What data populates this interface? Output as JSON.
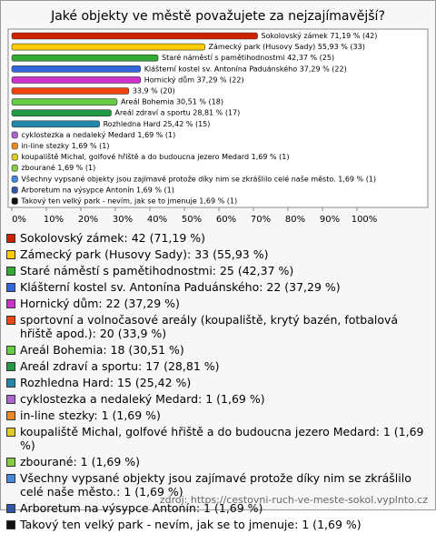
{
  "chart_data": {
    "type": "bar",
    "orientation": "horizontal",
    "title": "Jaké objekty ve městě považujete za nejzajímavější?",
    "categories": [
      "Sokolovský zámek",
      "Zámecký park (Husovy Sady)",
      "Staré náměstí s pamětihodnostmi",
      "Klášterní kostel sv. Antonína Paduánského",
      "Hornický dům",
      "sportovní a volnočasové areály (koupaliště, krytý bazén, fotbalová hřiště apod.)",
      "Areál Bohemia",
      "Areál zdraví a sportu",
      "Rozhledna Hard",
      "cyklostezka a nedaleký Medard",
      "in-line stezky",
      "koupaliště Michal, golfové hřiště a do budoucna jezero Medard",
      "zbourané",
      "Všechny vypsané objekty jsou zajímavé protože díky nim se zkrášlilo celé naše město.",
      "Arboretum na výsypce Antonín",
      "Takový ten velký park - nevím, jak se to jmenuje"
    ],
    "values": [
      71.19,
      55.93,
      42.37,
      37.29,
      37.29,
      33.9,
      30.51,
      28.81,
      25.42,
      1.69,
      1.69,
      1.69,
      1.69,
      1.69,
      1.69,
      1.69
    ],
    "value_labels": [
      "Sokolovský zámek 71,19 % (42)",
      "Zámecký park (Husovy Sady) 55,93 % (33)",
      "Staré náměstí s pamětihodnostmi 42,37 % (25)",
      "Klášterní kostel sv. Antonína Paduánského 37,29 % (22)",
      "Hornický dům 37,29 % (22)",
      "33,9 % (20)",
      "Areál Bohemia 30,51 % (18)",
      "Areál zdraví a sportu 28,81 % (17)",
      "Rozhledna Hard 25,42 % (15)",
      "cyklostezka a nedaleký Medard 1,69 % (1)",
      "in-line stezky 1,69 % (1)",
      "koupaliště Michal, golfové hřiště a do budoucna jezero Medard 1,69 % (1)",
      "zbourané 1,69 % (1)",
      "Všechny vypsané objekty jsou zajímavé protože díky nim se zkrášlilo celé naše město. 1,69 % (1)",
      "Arboretum na výsypce Antonín 1,69 % (1)",
      "Takový ten velký park - nevím, jak se to jmenuje 1,69 % (1)"
    ],
    "legend_labels": [
      "Sokolovský zámek: 42 (71,19 %)",
      "Zámecký park (Husovy Sady): 33 (55,93 %)",
      "Staré náměstí s pamětihodnostmi: 25 (42,37 %)",
      "Klášterní kostel sv. Antonína Paduánského: 22 (37,29 %)",
      "Hornický dům: 22 (37,29 %)",
      "sportovní a volnočasové areály (koupaliště, krytý bazén, fotbalová hřiště apod.): 20 (33,9 %)",
      "Areál Bohemia: 18 (30,51 %)",
      "Areál zdraví a sportu: 17 (28,81 %)",
      "Rozhledna Hard: 15 (25,42 %)",
      "cyklostezka a nedaleký Medard: 1 (1,69 %)",
      "in-line stezky: 1 (1,69 %)",
      "koupaliště Michal, golfové hřiště a do budoucna jezero Medard: 1 (1,69 %)",
      "zbourané: 1 (1,69 %)",
      "Všechny vypsané objekty jsou zajímavé protože díky nim se zkrášlilo celé naše město.: 1 (1,69 %)",
      "Arboretum na výsypce Antonín: 1 (1,69 %)",
      "Takový ten velký park - nevím, jak se to jmenuje: 1 (1,69 %)"
    ],
    "colors": [
      "#cc2200",
      "#ffcc00",
      "#33aa33",
      "#3366dd",
      "#cc33cc",
      "#ee4411",
      "#66cc44",
      "#229944",
      "#2288aa",
      "#aa66cc",
      "#ee8822",
      "#ddcc22",
      "#88cc44",
      "#4488dd",
      "#3355aa",
      "#111111"
    ],
    "xlim": [
      0,
      120
    ],
    "xticks": [
      {
        "value": 0,
        "label": "0%"
      },
      {
        "value": 10,
        "label": "10%"
      },
      {
        "value": 20,
        "label": "20%"
      },
      {
        "value": 30,
        "label": "30%"
      },
      {
        "value": 40,
        "label": "40%"
      },
      {
        "value": 50,
        "label": "50%"
      },
      {
        "value": 60,
        "label": "60%"
      },
      {
        "value": 70,
        "label": "70%"
      },
      {
        "value": 80,
        "label": "80%"
      },
      {
        "value": 90,
        "label": "90%"
      },
      {
        "value": 100,
        "label": "100%"
      }
    ],
    "source": "zdroj: https://cestovni-ruch-ve-meste-sokol.vyplnto.cz"
  }
}
